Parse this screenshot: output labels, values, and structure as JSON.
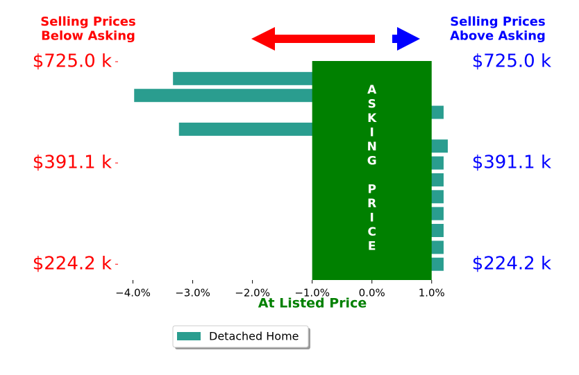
{
  "chart_data": {
    "type": "bar",
    "orientation": "horizontal",
    "left_title": "Selling Prices\nBelow Asking",
    "right_title": "Selling Prices\nAbove Asking",
    "band_label": "ASKING PRICE",
    "xlabel": "At Listed Price",
    "categories": [
      "$725.0 k",
      null,
      null,
      null,
      null,
      null,
      "$391.1 k",
      null,
      null,
      null,
      null,
      null,
      "$224.2 k"
    ],
    "series": [
      {
        "name": "Detached Home",
        "color": "#2a9d8f",
        "values": [
          null,
          -3.33,
          -3.98,
          1.2,
          -3.23,
          1.27,
          1.2,
          1.2,
          1.2,
          1.2,
          1.2,
          1.2,
          1.2
        ]
      }
    ],
    "band": [
      -1,
      1
    ],
    "band_color": "#008000",
    "xlim": [
      -4.25,
      1.27
    ],
    "xticks": [
      {
        "value": -4,
        "label": "−4.0%"
      },
      {
        "value": -3,
        "label": "−3.0%"
      },
      {
        "value": -2,
        "label": "−2.0%"
      },
      {
        "value": -1,
        "label": "−1.0%"
      },
      {
        "value": 0,
        "label": "0.0%"
      },
      {
        "value": 1,
        "label": "1.0%"
      }
    ],
    "legend": "lower center"
  }
}
